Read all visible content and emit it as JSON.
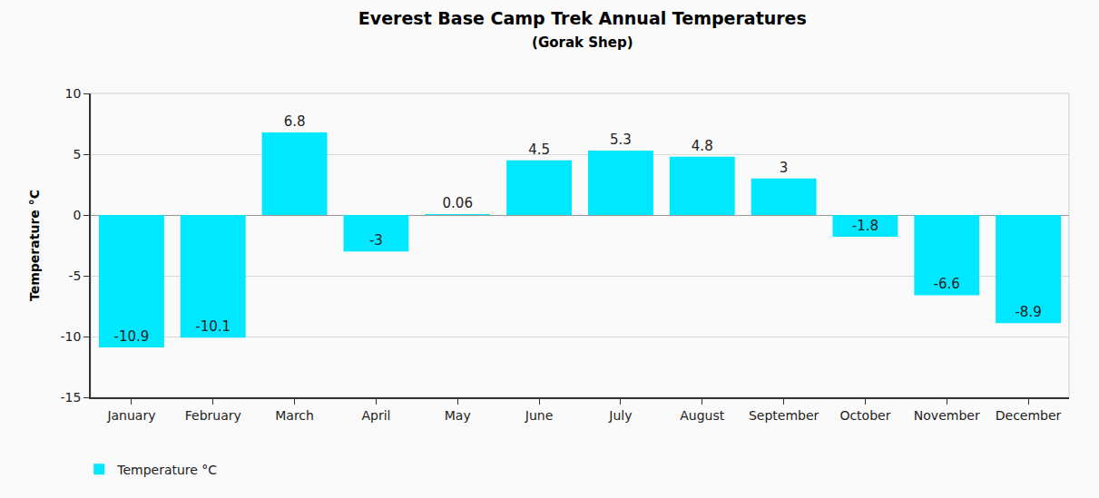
{
  "chart_data": {
    "type": "bar",
    "title": "Everest Base Camp Trek Annual Temperatures",
    "subtitle": "(Gorak Shep)",
    "y_label": "Temperature °C",
    "categories": [
      "January",
      "February",
      "March",
      "April",
      "May",
      "June",
      "July",
      "August",
      "September",
      "October",
      "November",
      "December"
    ],
    "series": [
      {
        "name": "Temperature °C",
        "color": "#00e8ff",
        "values": [
          -10.9,
          -10.1,
          6.8,
          -3,
          0.06,
          4.5,
          5.3,
          4.8,
          3,
          -1.8,
          -6.6,
          -8.9
        ]
      }
    ],
    "ylim": [
      -15,
      10
    ],
    "yticks": [
      -15,
      -10,
      -5,
      0,
      5,
      10
    ],
    "grid": true,
    "legend": "bottom left",
    "data_labels": true
  }
}
